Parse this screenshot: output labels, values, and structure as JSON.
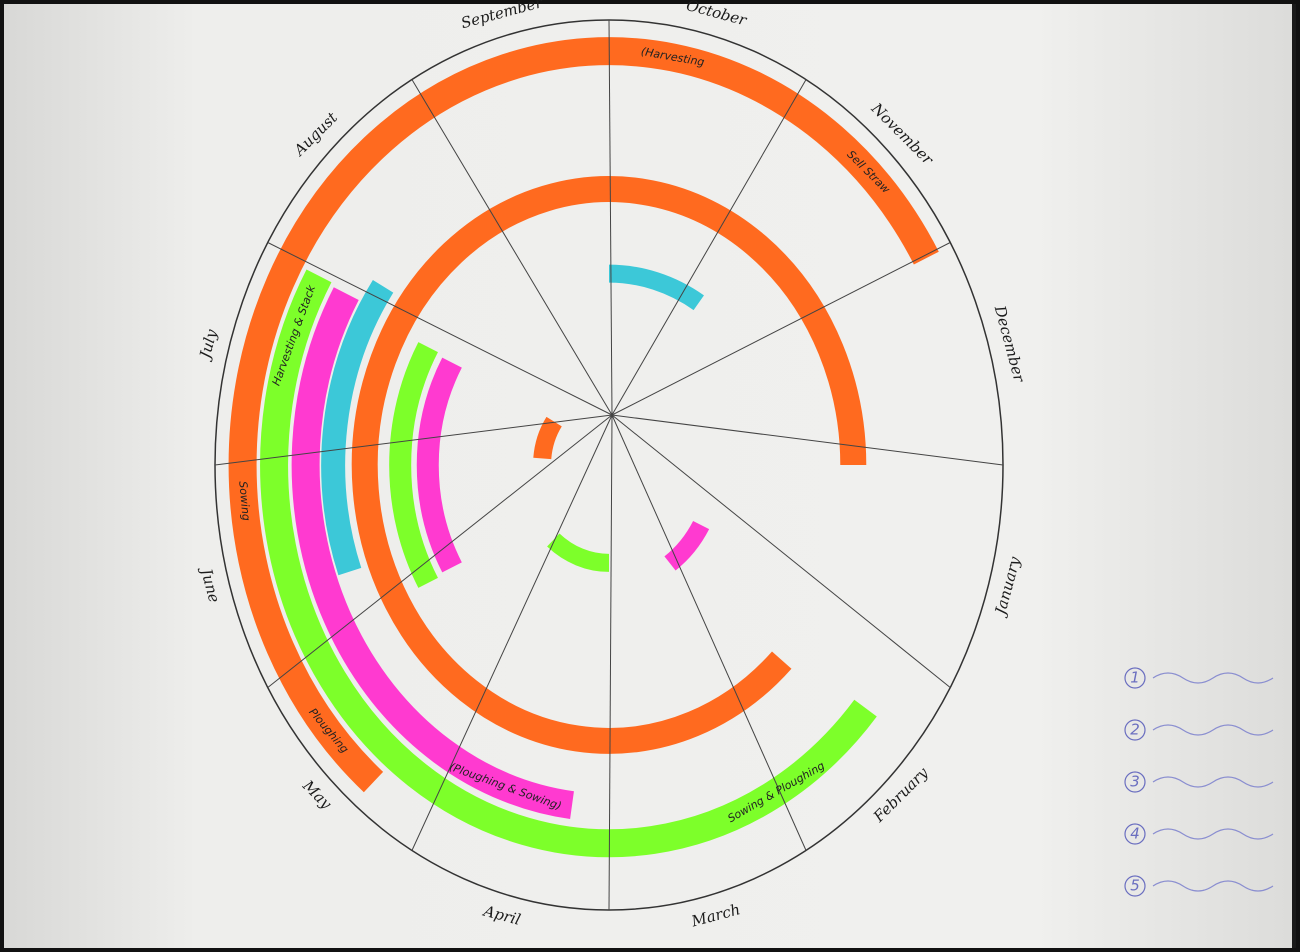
{
  "title_months": [
    "September",
    "October",
    "November",
    "December",
    "January",
    "February",
    "March",
    "April",
    "May",
    "June",
    "July",
    "August"
  ],
  "activities": [
    "(Harvesting",
    "Sell Straw",
    "Sowing",
    "Ploughing",
    "(Ploughing & Sowing)",
    "Sowing & Ploughing",
    "Harvesting & Stack"
  ],
  "legend": [
    "1",
    "2",
    "3",
    "4",
    "5"
  ]
}
